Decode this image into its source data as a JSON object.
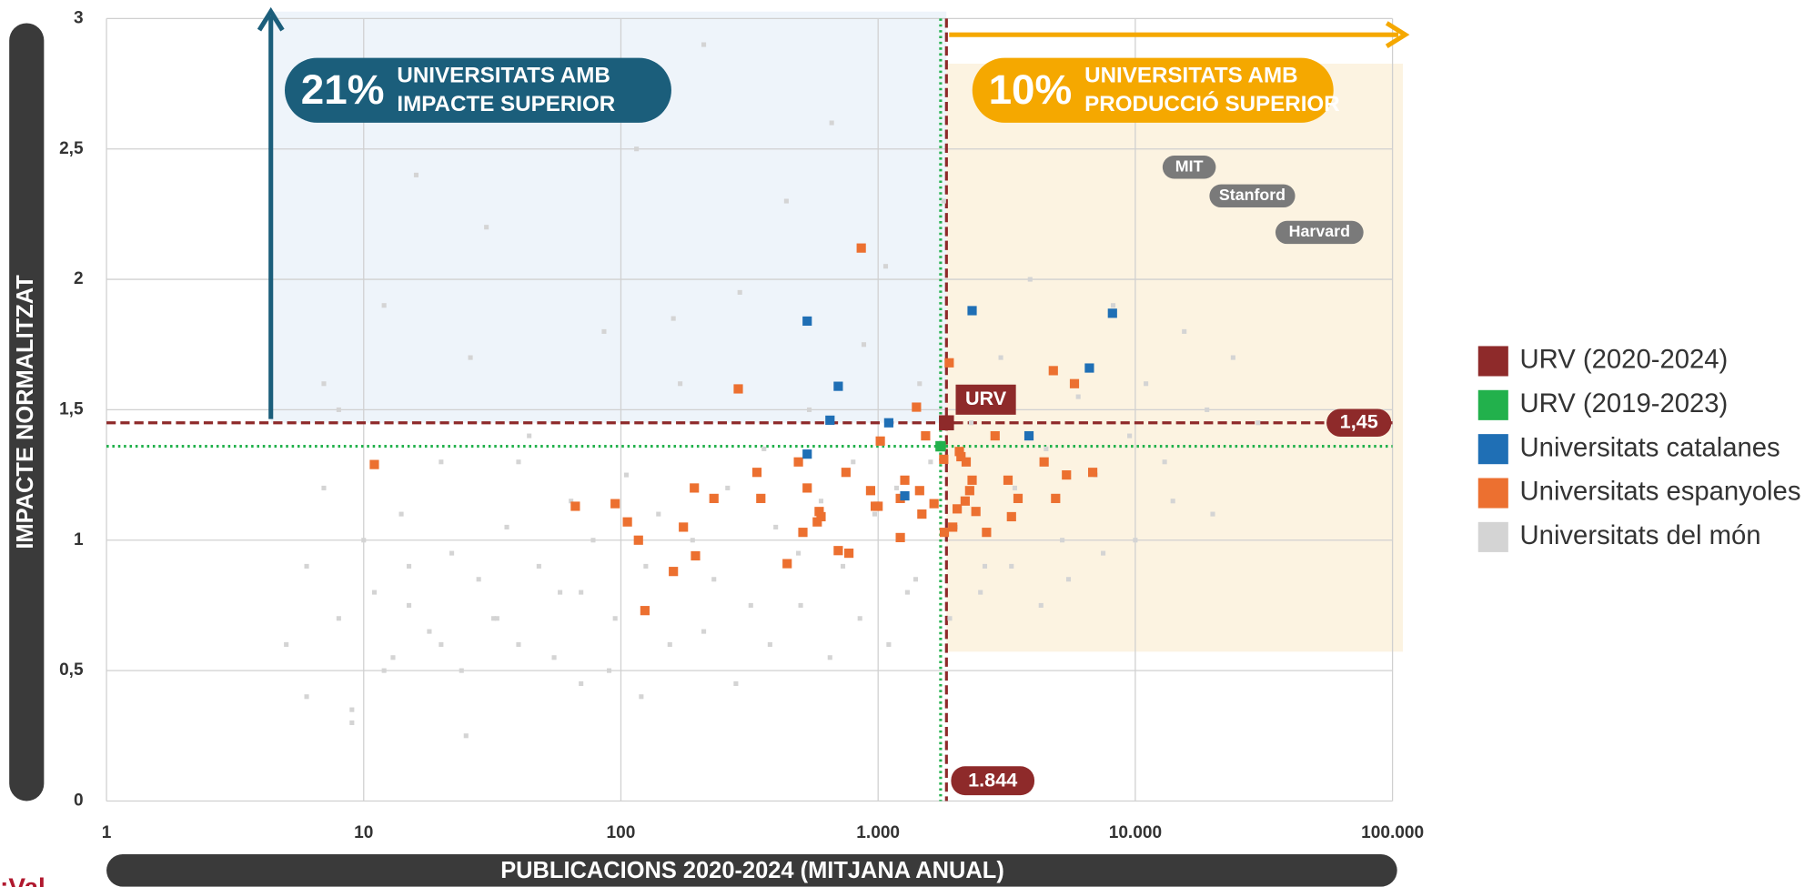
{
  "chart_data": {
    "type": "scatter",
    "xlabel": "PUBLICACIONS 2020-2024 (MITJANA ANUAL)",
    "ylabel": "IMPACTE NORMALITZAT",
    "xscale": "log",
    "xlim": [
      1,
      100000
    ],
    "ylim": [
      0,
      3
    ],
    "xticks": [
      1,
      10,
      100,
      {
        "value": 1000,
        "label": "1.000"
      },
      {
        "value": 10000,
        "label": "10.000"
      },
      {
        "value": 100000,
        "label": "100.000"
      }
    ],
    "yticks": [
      0,
      {
        "value": 0.5,
        "label": "0,5"
      },
      1,
      {
        "value": 1.5,
        "label": "1,5"
      },
      2,
      {
        "value": 2.5,
        "label": "2,5"
      },
      3
    ],
    "grid": true,
    "legend": "right",
    "brand": "¡Val",
    "callouts": [
      {
        "percent": "21%",
        "line1": "UNIVERSITATS AMB",
        "line2": "IMPACTE SUPERIOR",
        "color": "#1b5e7b"
      },
      {
        "percent": "10%",
        "line1": "UNIVERSITATS AMB",
        "line2": "PRODUCCIÓ SUPERIOR",
        "color": "#f5a800"
      }
    ],
    "annotations": [
      {
        "text": "MIT",
        "x": 16200,
        "y": 2.43
      },
      {
        "text": "Stanford",
        "x": 28500,
        "y": 2.32
      },
      {
        "text": "Harvard",
        "x": 52000,
        "y": 2.18
      }
    ],
    "series": [
      {
        "name": "URV (2020-2024)",
        "color": "#8e2a2a",
        "reference_line": "dashed",
        "label": "URV",
        "x": [
          1844
        ],
        "values": [
          1.45
        ],
        "value_labels": [
          "1,45"
        ],
        "x_value_labels": [
          "1.844"
        ]
      },
      {
        "name": "URV (2019-2023)",
        "color": "#22b14c",
        "reference_line": "dotted",
        "x": [
          1750
        ],
        "values": [
          1.36
        ]
      },
      {
        "name": "Universitats catalanes",
        "color": "#1f6fb5",
        "x": [
          530,
          700,
          650,
          1100,
          530,
          1270,
          2320,
          3860,
          6630,
          8150
        ],
        "values": [
          1.84,
          1.59,
          1.46,
          1.45,
          1.33,
          1.17,
          1.88,
          1.4,
          1.66,
          1.87
        ]
      },
      {
        "name": "Universitats espanyoles",
        "color": "#ec7030",
        "x": [
          11,
          66.5,
          95,
          106,
          117,
          124,
          160,
          175,
          193,
          195,
          230,
          286,
          338,
          350,
          443,
          490,
          510,
          530,
          580,
          590,
          600,
          700,
          750,
          770,
          860,
          935,
          975,
          1000,
          1020,
          1220,
          1220,
          1270,
          1410,
          1450,
          1480,
          1530,
          1650,
          1760,
          1800,
          1810,
          1890,
          1950,
          2030,
          2070,
          2100,
          2180,
          2200,
          2270,
          2320,
          2400,
          2640,
          2850,
          3200,
          3300,
          3500,
          4420,
          4800,
          4900,
          5400,
          5800,
          6830
        ],
        "values": [
          1.29,
          1.13,
          1.14,
          1.07,
          1.0,
          0.73,
          0.88,
          1.05,
          1.2,
          0.94,
          1.16,
          1.58,
          1.26,
          1.16,
          0.91,
          1.3,
          1.03,
          1.2,
          1.07,
          1.11,
          1.09,
          0.96,
          1.26,
          0.95,
          2.12,
          1.19,
          1.13,
          1.13,
          1.38,
          1.01,
          1.16,
          1.23,
          1.51,
          1.19,
          1.1,
          1.4,
          1.14,
          1.36,
          1.31,
          1.03,
          1.68,
          1.05,
          1.12,
          1.34,
          1.32,
          1.15,
          1.3,
          1.19,
          1.23,
          1.11,
          1.03,
          1.4,
          1.23,
          1.09,
          1.16,
          1.3,
          1.65,
          1.16,
          1.25,
          1.6,
          1.26
        ]
      },
      {
        "name": "Universitats del món",
        "color": "#d4d4d4",
        "x": [
          5,
          6,
          6,
          7,
          8,
          8,
          9,
          10,
          11,
          12,
          13,
          14,
          15,
          16,
          18,
          20,
          22,
          24,
          26,
          28,
          30,
          33,
          36,
          40,
          44,
          48,
          52,
          58,
          64,
          70,
          78,
          86,
          95,
          105,
          115,
          125,
          140,
          155,
          170,
          190,
          210,
          230,
          260,
          290,
          320,
          360,
          400,
          440,
          490,
          540,
          600,
          660,
          730,
          800,
          880,
          970,
          1070,
          1180,
          1300,
          1450,
          1600,
          1800,
          2000,
          2300,
          2600,
          3000,
          3400,
          3900,
          4500,
          5200,
          6000,
          7000,
          8200,
          9500,
          11000,
          13000,
          15500,
          19000,
          24000,
          30000,
          7,
          9,
          12,
          15,
          20,
          25,
          32,
          40,
          55,
          70,
          90,
          120,
          160,
          210,
          280,
          380,
          500,
          650,
          850,
          1100,
          1400,
          1900,
          2500,
          3300,
          4300,
          5500,
          7500,
          10000,
          14000,
          20000
        ],
        "values": [
          0.6,
          0.9,
          0.4,
          1.2,
          0.7,
          1.5,
          0.3,
          1.0,
          0.8,
          1.9,
          0.55,
          1.1,
          0.75,
          2.4,
          0.65,
          1.3,
          0.95,
          0.5,
          1.7,
          0.85,
          2.2,
          0.7,
          1.05,
          0.6,
          1.4,
          0.9,
          2.7,
          0.8,
          1.15,
          0.45,
          1.0,
          1.8,
          0.7,
          1.25,
          2.5,
          0.9,
          1.1,
          0.6,
          1.6,
          1.0,
          2.9,
          0.85,
          1.2,
          1.95,
          0.75,
          1.35,
          1.05,
          2.3,
          0.95,
          1.5,
          1.15,
          2.6,
          0.9,
          1.3,
          1.75,
          1.1,
          2.05,
          1.2,
          0.8,
          1.6,
          1.3,
          2.3,
          1.05,
          1.45,
          0.9,
          1.7,
          1.2,
          2.0,
          1.35,
          1.0,
          1.55,
          1.25,
          1.9,
          1.4,
          1.6,
          1.3,
          1.8,
          1.5,
          1.7,
          1.45,
          1.6,
          0.35,
          0.5,
          0.9,
          0.6,
          0.25,
          0.7,
          1.3,
          0.55,
          0.8,
          0.5,
          0.4,
          1.85,
          0.65,
          0.45,
          0.6,
          0.75,
          0.55,
          0.7,
          0.6,
          0.85,
          0.7,
          0.8,
          0.9,
          0.75,
          0.85,
          0.95,
          1.0,
          1.15,
          1.1
        ]
      }
    ]
  }
}
